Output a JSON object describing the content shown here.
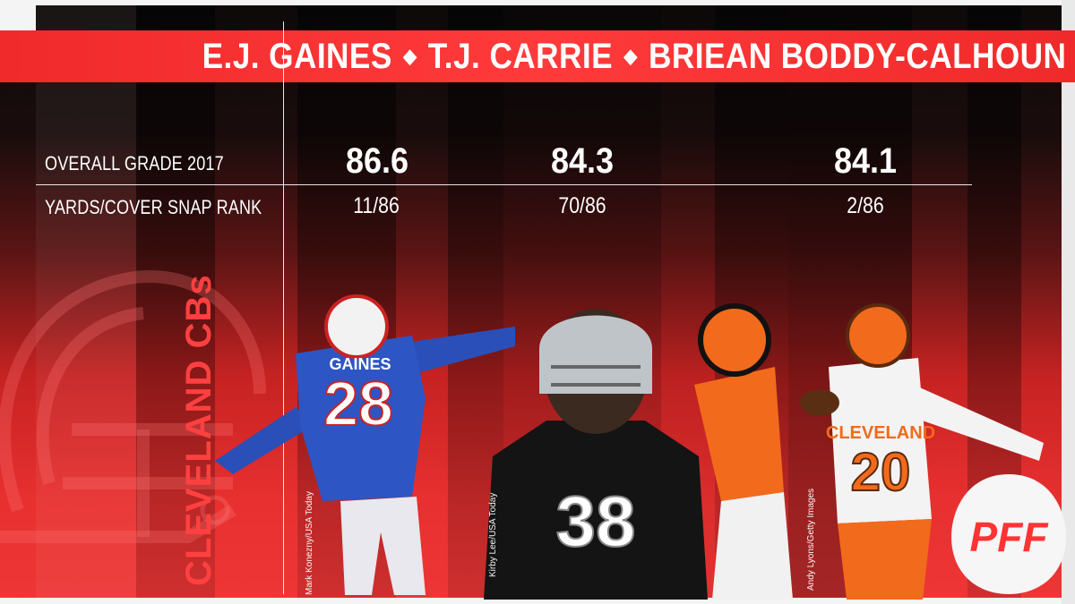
{
  "header": {
    "players": [
      "E.J. GAINES",
      "T.J. CARRIE",
      "BRIEAN BODDY-CALHOUN"
    ],
    "separator": "◆"
  },
  "rows": {
    "grade_label": "OVERALL GRADE 2017",
    "rank_label": "YARDS/COVER SNAP RANK"
  },
  "players": [
    {
      "name": "E.J. GAINES",
      "grade": "86.6",
      "rank": "11/86",
      "credit": "Mark Konezny/USA Today",
      "jersey": "28",
      "team_color": "#2a4fb8"
    },
    {
      "name": "T.J. CARRIE",
      "grade": "84.3",
      "rank": "70/86",
      "credit": "Kirby Lee/USA Today",
      "jersey": "38",
      "team_color": "#1a1a1a"
    },
    {
      "name": "BRIEAN BODDY-CALHOUN",
      "grade": "84.1",
      "rank": "2/86",
      "credit": "Andy Lyons/Getty Images",
      "jersey": "20",
      "team_color": "#f0f0f0"
    }
  ],
  "side_title": "CLEVELAND CBs",
  "brand": {
    "logo_text": "PFF",
    "accent": "#ff3333"
  },
  "icons": [
    "browns-helmet-icon",
    "pff-logo-icon"
  ]
}
